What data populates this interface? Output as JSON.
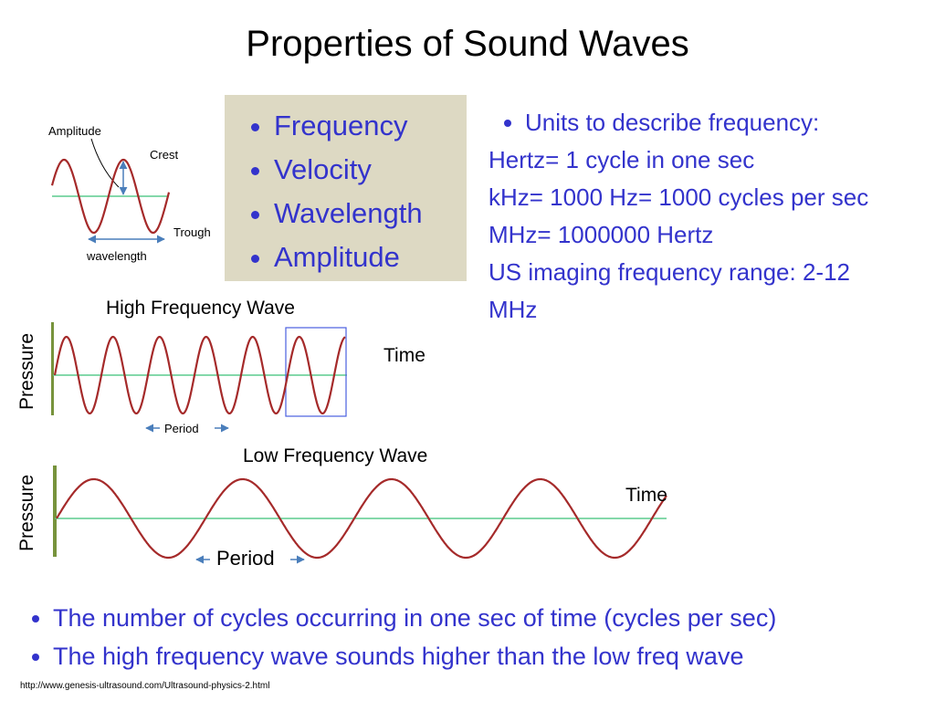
{
  "title": "Properties of Sound Waves",
  "properties_box": {
    "items": [
      "Frequency",
      "Velocity",
      "Wavelength",
      "Amplitude"
    ]
  },
  "units": {
    "bullet": "Units to describe frequency:",
    "lines": [
      "Hertz= 1 cycle in one sec",
      "kHz= 1000 Hz= 1000 cycles per sec",
      "MHz= 1000000 Hertz",
      "US imaging frequency range: 2-12 MHz"
    ]
  },
  "wave_diagram": {
    "amplitude": "Amplitude",
    "crest": "Crest",
    "trough": "Trough",
    "wavelength": "wavelength"
  },
  "high_frequency": {
    "title": "High Frequency Wave",
    "y_label": "Pressure",
    "x_label": "Time",
    "period": "Period"
  },
  "low_frequency": {
    "title": "Low Frequency Wave",
    "y_label": "Pressure",
    "x_label": "Time",
    "period": "Period"
  },
  "notes": [
    "The number of cycles occurring in one sec of time (cycles per sec)",
    "The high frequency wave sounds higher than the low freq wave"
  ],
  "source": "http://www.genesis-ultrasound.com/Ultrasound-physics-2.html"
}
